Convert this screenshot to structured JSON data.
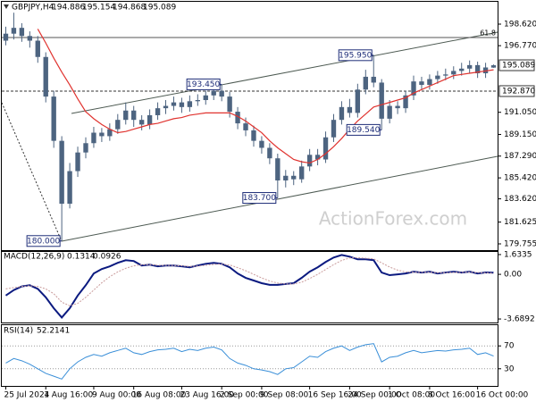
{
  "chart_data": [
    {
      "type": "candlestick",
      "symbol": "GBPJPY,H4",
      "color": "#4d6480",
      "categories": [
        "25 Jul 2024",
        null,
        null,
        null,
        null,
        "1 Aug 16:00",
        null,
        null,
        null,
        null,
        null,
        "9 Aug 00:00",
        null,
        null,
        null,
        null,
        "16 Aug 08:00",
        null,
        null,
        null,
        null,
        null,
        "23 Aug 16:00",
        null,
        null,
        null,
        null,
        "2 Sep 00:00",
        null,
        null,
        null,
        null,
        "9 Sep 08:00",
        null,
        null,
        null,
        null,
        null,
        "16 Sep 16:00",
        null,
        null,
        null,
        null,
        "24 Sep 00:00",
        null,
        null,
        null,
        null,
        "1 Oct 08:00",
        null,
        null,
        null,
        null,
        "8 Oct 16:00",
        null,
        null,
        null,
        null,
        null,
        "16 Oct 00:00",
        null,
        null
      ],
      "open": [
        197.2,
        197.8,
        198.3,
        197.6,
        197.2,
        195.8,
        192.4,
        188.6,
        183.2,
        186.0,
        187.6,
        188.4,
        189.3,
        189.0,
        189.6,
        190.4,
        191.2,
        190.4,
        190.0,
        190.8,
        191.4,
        191.6,
        191.9,
        191.5,
        192.0,
        192.1,
        192.5,
        192.9,
        192.4,
        191.1,
        190.1,
        189.5,
        188.6,
        188.0,
        187.1,
        185.2,
        185.6,
        185.3,
        186.4,
        187.4,
        187.0,
        188.9,
        190.4,
        191.5,
        191.0,
        193.0,
        194.1,
        193.6,
        190.5,
        191.6,
        191.4,
        192.5,
        193.7,
        193.4,
        193.9,
        194.2,
        194.3,
        194.6,
        194.8,
        195.1,
        194.4,
        194.886
      ],
      "high": [
        198.4,
        199.6,
        198.7,
        198.0,
        197.6,
        196.2,
        192.9,
        189.0,
        186.7,
        188.1,
        188.9,
        189.8,
        189.7,
        190.1,
        190.9,
        191.9,
        191.6,
        190.8,
        191.3,
        191.9,
        192.1,
        192.4,
        192.3,
        192.5,
        192.6,
        192.9,
        193.2,
        193.45,
        192.8,
        191.5,
        190.6,
        189.9,
        189.0,
        188.4,
        187.5,
        186.1,
        186.0,
        186.9,
        187.9,
        187.9,
        189.4,
        190.9,
        192.0,
        192.2,
        193.5,
        194.7,
        195.95,
        193.9,
        192.1,
        192.0,
        192.9,
        194.2,
        194.1,
        194.3,
        194.6,
        194.8,
        195.0,
        195.3,
        195.5,
        195.4,
        195.3,
        195.154
      ],
      "low": [
        196.8,
        197.3,
        197.1,
        196.6,
        195.3,
        191.9,
        188.0,
        180.0,
        182.8,
        185.5,
        187.1,
        188.0,
        188.5,
        188.6,
        189.2,
        190.0,
        189.8,
        189.5,
        189.6,
        190.4,
        190.9,
        191.2,
        191.0,
        191.1,
        191.6,
        191.7,
        192.1,
        192.0,
        190.6,
        189.6,
        189.0,
        188.1,
        187.5,
        186.6,
        183.7,
        184.6,
        184.8,
        185.0,
        186.0,
        186.5,
        186.7,
        188.5,
        190.0,
        190.6,
        190.6,
        192.6,
        193.2,
        189.54,
        190.1,
        190.9,
        191.0,
        192.1,
        193.0,
        193.0,
        193.5,
        193.8,
        193.9,
        194.2,
        194.4,
        194.0,
        194.0,
        194.868
      ],
      "close": [
        197.8,
        198.3,
        197.6,
        197.2,
        195.8,
        192.4,
        188.6,
        183.2,
        186.0,
        187.6,
        188.4,
        189.3,
        189.0,
        189.6,
        190.4,
        191.2,
        190.4,
        190.0,
        190.8,
        191.4,
        191.6,
        191.9,
        191.5,
        192.0,
        192.1,
        192.5,
        192.9,
        192.4,
        191.1,
        190.1,
        189.5,
        188.6,
        188.0,
        187.1,
        185.2,
        185.6,
        185.3,
        186.4,
        187.4,
        187.0,
        188.9,
        190.4,
        191.5,
        191.0,
        193.0,
        194.1,
        193.6,
        190.5,
        191.6,
        191.4,
        192.5,
        193.7,
        193.4,
        193.9,
        194.2,
        194.3,
        194.6,
        194.8,
        195.1,
        194.4,
        194.9,
        195.089
      ],
      "ma": {
        "color": "#e0332f",
        "values": [
          null,
          null,
          null,
          null,
          198.2,
          197.0,
          195.7,
          194.5,
          193.4,
          192.2,
          191.1,
          190.5,
          190.0,
          189.6,
          189.3,
          189.4,
          189.6,
          189.8,
          190.0,
          190.1,
          190.3,
          190.5,
          190.6,
          190.8,
          190.9,
          191.0,
          191.0,
          191.0,
          191.0,
          190.7,
          190.3,
          189.8,
          189.3,
          188.6,
          188.0,
          187.5,
          187.0,
          186.8,
          186.7,
          187.0,
          187.5,
          188.1,
          188.8,
          189.6,
          190.3,
          190.9,
          191.5,
          191.7,
          191.9,
          192.1,
          192.3,
          192.7,
          193.0,
          193.3,
          193.6,
          193.9,
          194.2,
          194.3,
          194.4,
          194.5,
          194.6,
          194.7
        ]
      },
      "ylim": [
        179.217,
        200.537
      ],
      "yticks": [
        {
          "value": 198.62,
          "label": "198.620"
        },
        {
          "value": 196.77,
          "label": "196.770"
        },
        {
          "value": 191.05,
          "label": "191.050"
        },
        {
          "value": 189.15,
          "label": "189.150"
        },
        {
          "value": 187.29,
          "label": "187.290"
        },
        {
          "value": 185.42,
          "label": "185.420"
        },
        {
          "value": 183.62,
          "label": "183.620"
        },
        {
          "value": 181.625,
          "label": "181.625"
        },
        {
          "value": 179.755,
          "label": "179.755"
        }
      ],
      "levels": [
        {
          "value": 192.87,
          "label": "192.870"
        }
      ],
      "fib_level": 61.8,
      "fib_price": 197.47,
      "annotations": [
        {
          "value": 180.0,
          "label": "180.000"
        },
        {
          "value": 193.45,
          "label": "193.450"
        },
        {
          "value": 183.7,
          "label": "183.700"
        },
        {
          "value": 195.95,
          "label": "195.950"
        },
        {
          "value": 189.54,
          "label": "189.540"
        }
      ],
      "watermark": "ActionForex.com"
    },
    {
      "type": "line",
      "title": "MACD(12,26,9)",
      "series": [
        {
          "color": "#0b1a80",
          "values": [
            -1.75,
            -1.3,
            -1.0,
            -0.9,
            -1.2,
            -1.9,
            -2.8,
            -3.57,
            -2.8,
            -1.75,
            -0.9,
            0.07,
            0.44,
            0.66,
            0.95,
            1.17,
            1.1,
            0.73,
            0.8,
            0.66,
            0.73,
            0.73,
            0.66,
            0.58,
            0.73,
            0.87,
            0.95,
            0.87,
            0.58,
            0.07,
            -0.29,
            -0.51,
            -0.73,
            -0.87,
            -0.87,
            -0.8,
            -0.73,
            -0.29,
            0.22,
            0.58,
            1.02,
            1.39,
            1.6,
            1.46,
            1.24,
            1.24,
            1.17,
            0.15,
            -0.07,
            0,
            0.07,
            0.22,
            0.15,
            0.22,
            0.07,
            0.15,
            0.22,
            0.15,
            0.22,
            0.07,
            0.15,
            0.1314
          ]
        },
        {
          "color": "#c99a9a",
          "values": [
            -1.2,
            -1.1,
            -1.0,
            -0.95,
            -1.0,
            -1.2,
            -1.6,
            -2.3,
            -2.6,
            -2.4,
            -1.9,
            -1.3,
            -0.7,
            -0.2,
            0.2,
            0.5,
            0.7,
            0.8,
            0.8,
            0.75,
            0.74,
            0.73,
            0.7,
            0.66,
            0.68,
            0.74,
            0.82,
            0.85,
            0.78,
            0.55,
            0.3,
            0,
            -0.3,
            -0.55,
            -0.72,
            -0.8,
            -0.8,
            -0.65,
            -0.35,
            0,
            0.4,
            0.8,
            1.15,
            1.35,
            1.38,
            1.33,
            1.28,
            0.95,
            0.6,
            0.35,
            0.2,
            0.17,
            0.16,
            0.17,
            0.14,
            0.13,
            0.15,
            0.16,
            0.18,
            0.15,
            0.12,
            0.0926
          ]
        }
      ],
      "ylim": [
        -3.98,
        1.852
      ],
      "yticks": [
        1.6335,
        {
          "value": 0,
          "label": "0.00"
        },
        -3.6892
      ],
      "grid": false
    },
    {
      "type": "line",
      "title": "RSI(14)",
      "series": [
        {
          "color": "#3a8fd8",
          "values": [
            40,
            48,
            44,
            38,
            30,
            22,
            17,
            12,
            30,
            42,
            50,
            55,
            52,
            58,
            62,
            66,
            58,
            55,
            60,
            63,
            64,
            66,
            60,
            64,
            62,
            66,
            68,
            63,
            48,
            40,
            36,
            30,
            28,
            25,
            20,
            30,
            32,
            42,
            52,
            50,
            60,
            66,
            70,
            62,
            68,
            72,
            74,
            42,
            50,
            52,
            58,
            62,
            58,
            60,
            62,
            61,
            63,
            64,
            66,
            55,
            58,
            52.2141
          ]
        }
      ],
      "ylim": [
        0,
        100
      ],
      "yticks": [
        70,
        30
      ],
      "grid": true
    }
  ]
}
